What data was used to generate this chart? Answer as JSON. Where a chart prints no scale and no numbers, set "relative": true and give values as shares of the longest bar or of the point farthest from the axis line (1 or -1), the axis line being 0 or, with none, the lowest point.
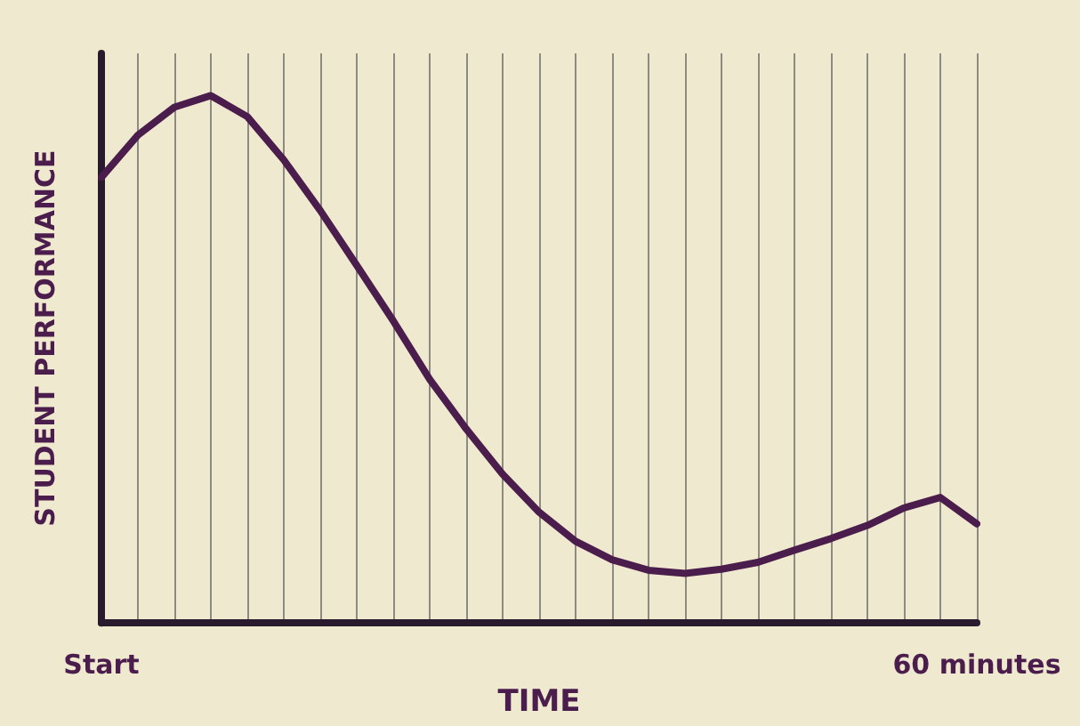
{
  "chart_data": {
    "type": "line",
    "relative": true,
    "xlabel": "TIME",
    "ylabel": "STUDENT PERFORMANCE",
    "grid": "x",
    "categories": [
      "Start",
      null,
      null,
      null,
      null,
      null,
      null,
      null,
      null,
      null,
      null,
      null,
      null,
      null,
      null,
      null,
      null,
      null,
      null,
      null,
      null,
      null,
      null,
      null,
      "60 minutes"
    ],
    "series": [
      {
        "color": "#4a1d4c",
        "values": [
          0.845,
          0.925,
          0.978,
          1,
          0.96,
          0.878,
          0.782,
          0.678,
          0.573,
          0.462,
          0.368,
          0.282,
          0.21,
          0.155,
          0.12,
          0.1,
          0.094,
          0.102,
          0.115,
          0.138,
          0.16,
          0.185,
          0.218,
          0.238,
          0.188
        ]
      }
    ]
  }
}
